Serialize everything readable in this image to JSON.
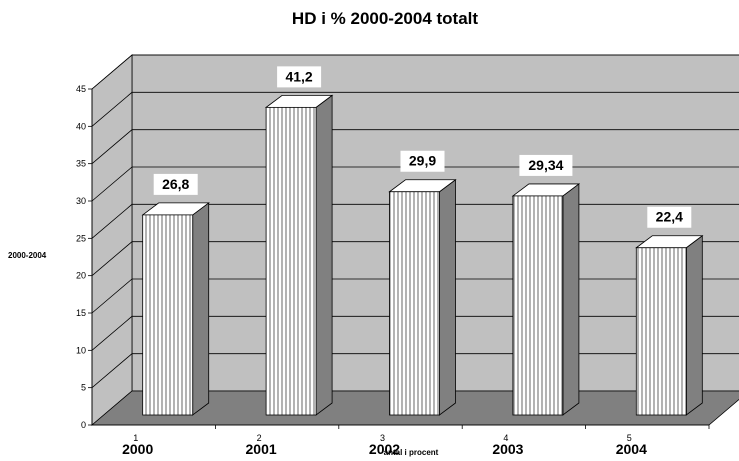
{
  "chart_data": {
    "type": "bar",
    "title": "HD i % 2000-2004 totalt",
    "xlabel": "antal i procent",
    "ylabel": "2000-2004",
    "categories": [
      "2000",
      "2001",
      "2002",
      "2003",
      "2004"
    ],
    "values": [
      26.8,
      41.2,
      29.9,
      29.34,
      22.4
    ],
    "data_labels": [
      "26,8",
      "41,2",
      "29,9",
      "29,34",
      "22,4"
    ],
    "ylim": [
      0,
      45
    ],
    "yticks": [
      "0",
      "5",
      "10",
      "15",
      "20",
      "25",
      "30",
      "35",
      "40",
      "45"
    ],
    "minor_tick_marks": [
      "1",
      "2",
      "3",
      "4",
      "5"
    ],
    "grid": true,
    "legend": "none",
    "style": "3d-column",
    "colors": {
      "wall": "#c0c0c0",
      "floor": "#808080",
      "bar_front": "#ffffff",
      "bar_side": "#808080",
      "bar_top": "#ffffff",
      "gridline": "#000000"
    }
  }
}
